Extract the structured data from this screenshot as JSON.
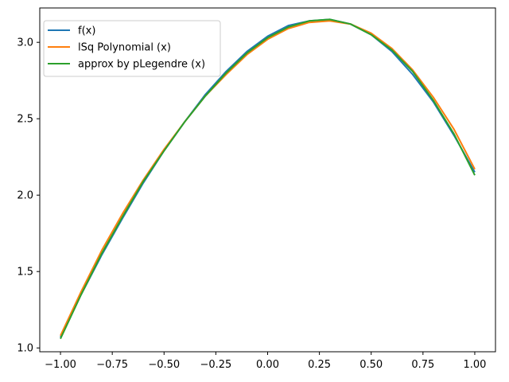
{
  "chart_data": {
    "type": "line",
    "title": "",
    "xlabel": "",
    "ylabel": "",
    "xlim": [
      -1.1,
      1.1
    ],
    "ylim": [
      0.975,
      3.225
    ],
    "xticks": [
      -1.0,
      -0.75,
      -0.5,
      -0.25,
      0.0,
      0.25,
      0.5,
      0.75,
      1.0
    ],
    "xtick_labels": [
      "−1.00",
      "−0.75",
      "−0.50",
      "−0.25",
      "0.00",
      "0.25",
      "0.50",
      "0.75",
      "1.00"
    ],
    "yticks": [
      1.0,
      1.5,
      2.0,
      2.5,
      3.0
    ],
    "ytick_labels": [
      "1.0",
      "1.5",
      "2.0",
      "2.5",
      "3.0"
    ],
    "grid": false,
    "legend_position": "top-left",
    "x": [
      -1.0,
      -0.9,
      -0.8,
      -0.7,
      -0.6,
      -0.5,
      -0.4,
      -0.3,
      -0.2,
      -0.1,
      0.0,
      0.1,
      0.2,
      0.3,
      0.4,
      0.5,
      0.6,
      0.7,
      0.8,
      0.9,
      1.0
    ],
    "series": [
      {
        "name": "f(x)",
        "color": "#1f77b4",
        "values": [
          1.07,
          1.35,
          1.61,
          1.85,
          2.08,
          2.29,
          2.48,
          2.66,
          2.81,
          2.94,
          3.04,
          3.11,
          3.14,
          3.15,
          3.12,
          3.05,
          2.94,
          2.79,
          2.61,
          2.39,
          2.15
        ]
      },
      {
        "name": "lSq Polynomial (x)",
        "color": "#ff7f0e",
        "values": [
          1.08,
          1.37,
          1.64,
          1.88,
          2.1,
          2.3,
          2.48,
          2.65,
          2.79,
          2.92,
          3.02,
          3.09,
          3.13,
          3.14,
          3.12,
          3.06,
          2.96,
          2.82,
          2.64,
          2.43,
          2.17
        ]
      },
      {
        "name": "approx by pLegendre (x)",
        "color": "#2ca02c",
        "values": [
          1.06,
          1.35,
          1.62,
          1.86,
          2.09,
          2.29,
          2.48,
          2.65,
          2.8,
          2.93,
          3.03,
          3.1,
          3.14,
          3.15,
          3.12,
          3.05,
          2.95,
          2.81,
          2.62,
          2.4,
          2.13
        ]
      }
    ]
  }
}
